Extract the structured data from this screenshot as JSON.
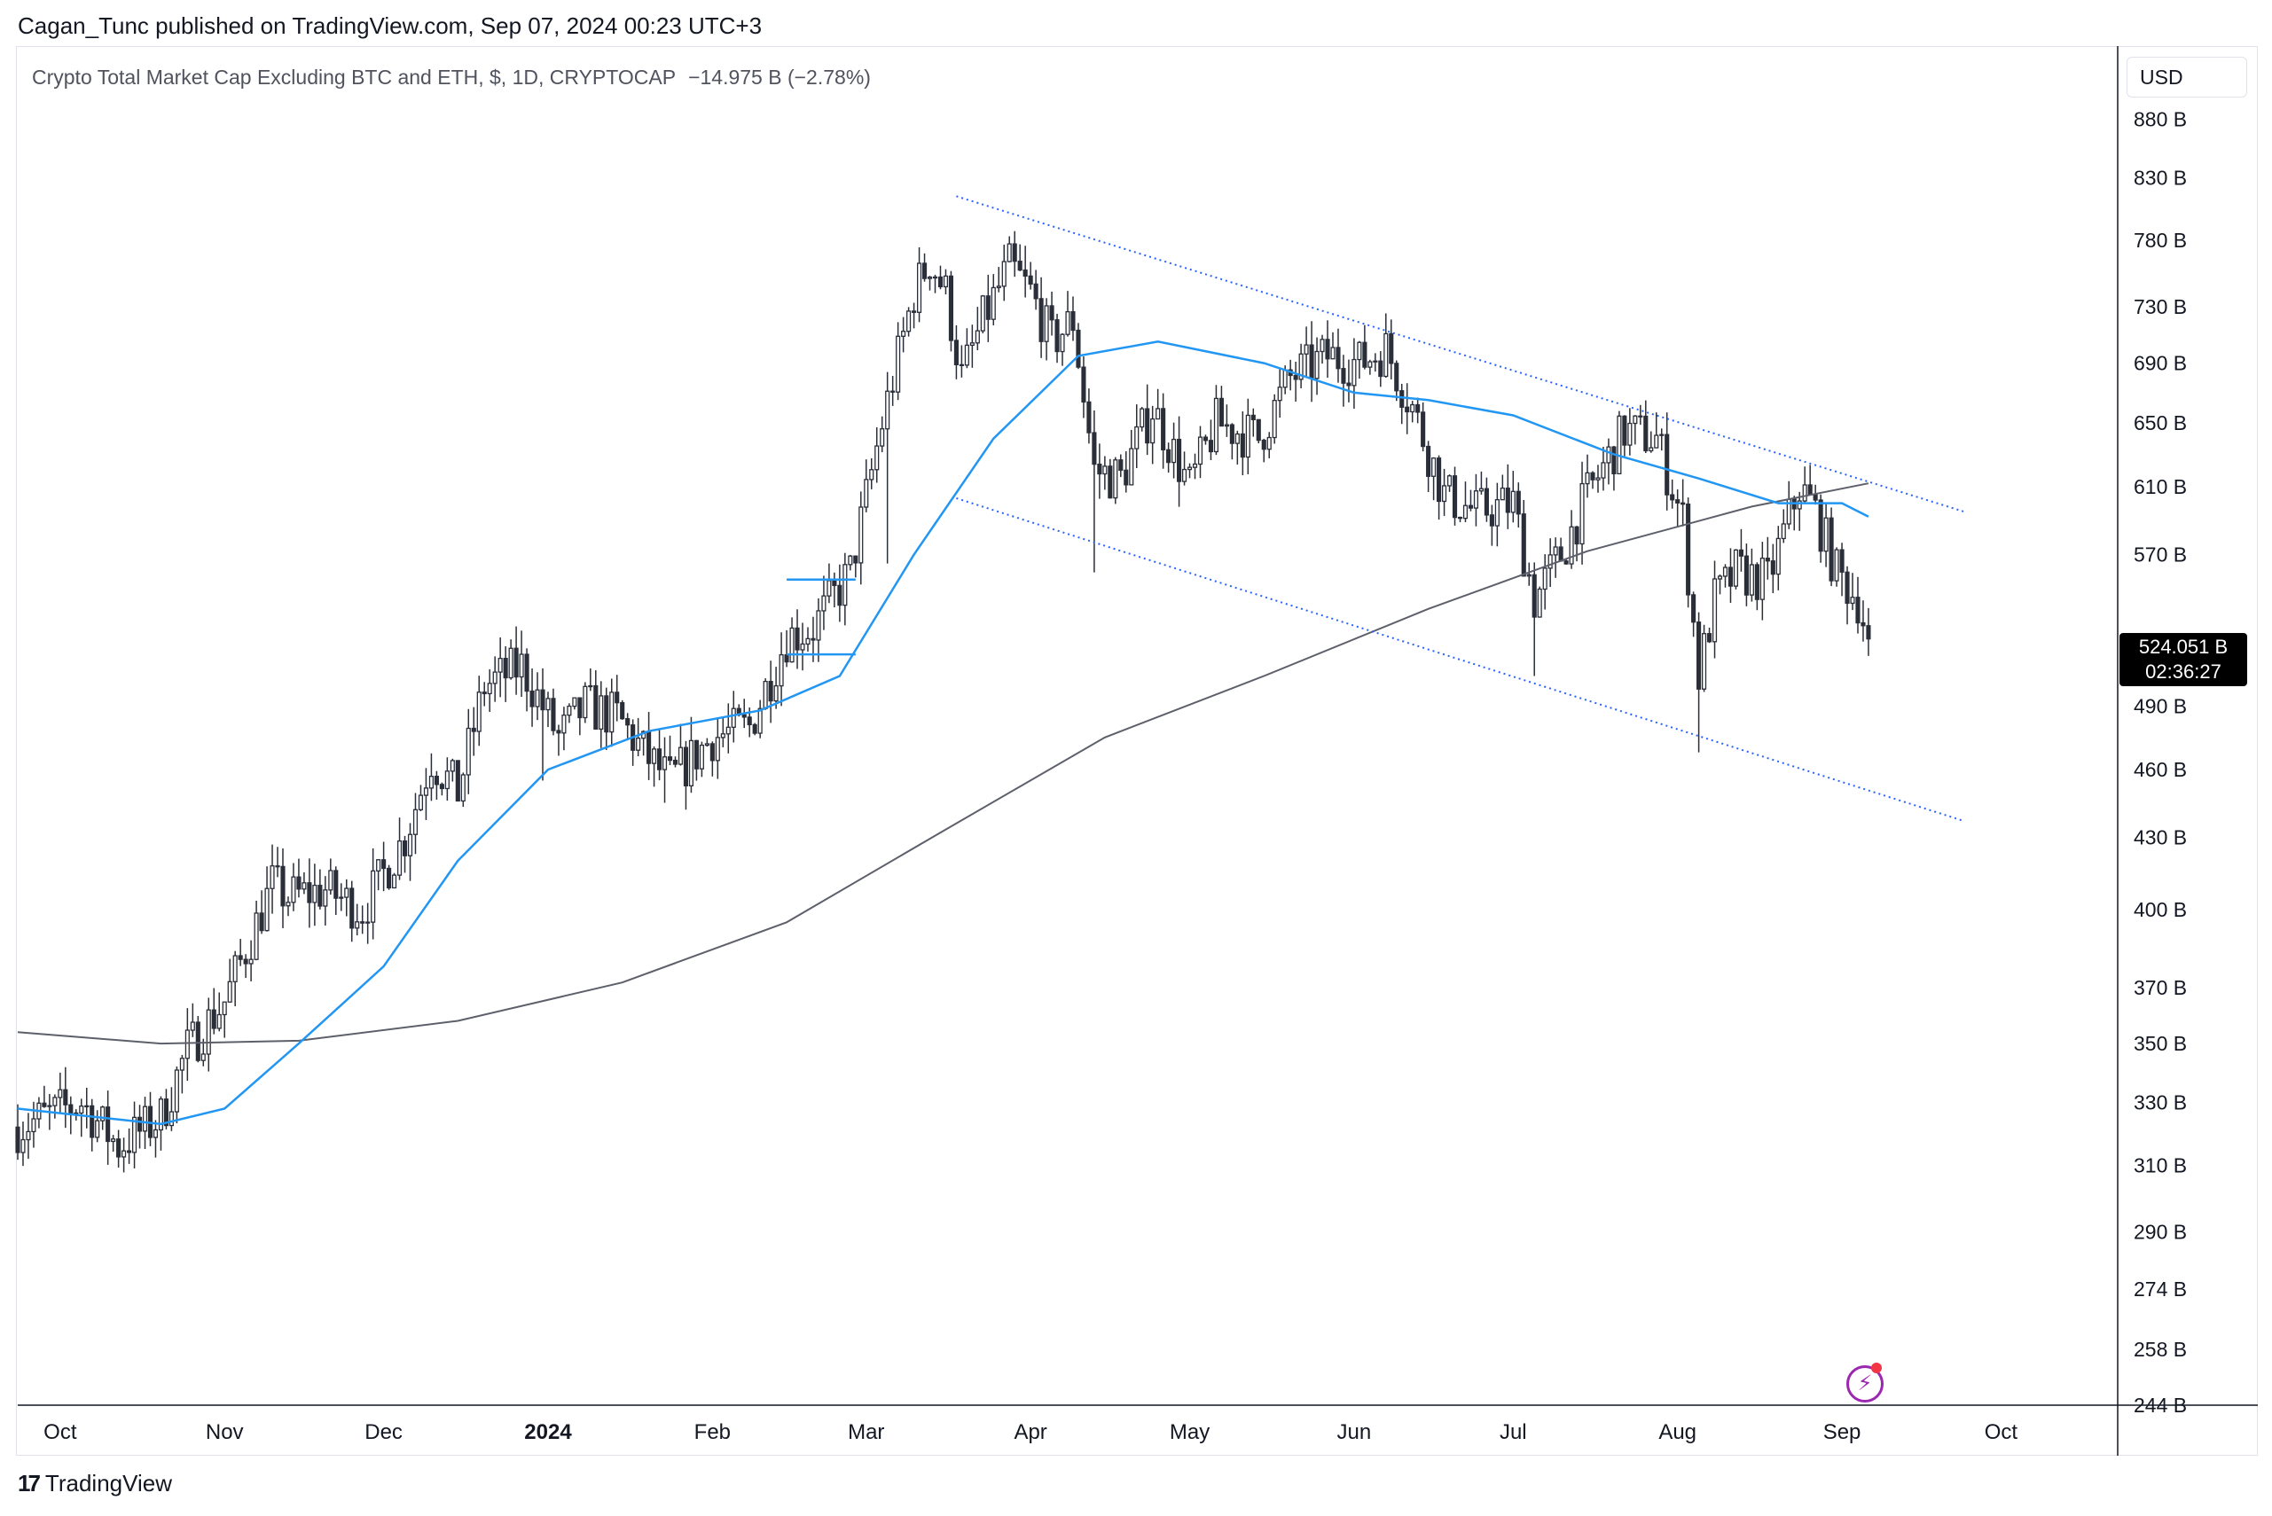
{
  "header": {
    "published_text": "Cagan_Tunc published on TradingView.com, Sep 07, 2024 00:23 UTC+3"
  },
  "legend": {
    "symbol": "Crypto Total Market Cap Excluding BTC and ETH, $, 1D, CRYPTOCAP",
    "change": "−14.975 B (−2.78%)"
  },
  "currency_button": "USD",
  "last_price": {
    "value": "524.051 B",
    "countdown": "02:36:27"
  },
  "footer": {
    "brand": "TradingView"
  },
  "colors": {
    "candle": "#2a2e39",
    "ma_fast": "#2196f3",
    "ma_slow": "#5d606b",
    "channel": "#2962ff",
    "grid_border": "#e0e3eb",
    "axis_text": "#131722"
  },
  "chart_data": {
    "type": "candlestick",
    "scale": "log",
    "title": "Crypto Total Market Cap Excluding BTC and ETH, $, 1D, CRYPTOCAP",
    "ylim": [
      244,
      940
    ],
    "y_ticks": [
      {
        "v": 880,
        "label": "880 B"
      },
      {
        "v": 830,
        "label": "830 B"
      },
      {
        "v": 780,
        "label": "780 B"
      },
      {
        "v": 730,
        "label": "730 B"
      },
      {
        "v": 690,
        "label": "690 B"
      },
      {
        "v": 650,
        "label": "650 B"
      },
      {
        "v": 610,
        "label": "610 B"
      },
      {
        "v": 570,
        "label": "570 B"
      },
      {
        "v": 490,
        "label": "490 B"
      },
      {
        "v": 460,
        "label": "460 B"
      },
      {
        "v": 430,
        "label": "430 B"
      },
      {
        "v": 400,
        "label": "400 B"
      },
      {
        "v": 370,
        "label": "370 B"
      },
      {
        "v": 350,
        "label": "350 B"
      },
      {
        "v": 330,
        "label": "330 B"
      },
      {
        "v": 310,
        "label": "310 B"
      },
      {
        "v": 290,
        "label": "290 B"
      },
      {
        "v": 274,
        "label": "274 B"
      },
      {
        "v": 258,
        "label": "258 B"
      },
      {
        "v": 244,
        "label": "244 B"
      }
    ],
    "x_ticks": [
      {
        "date": "2023-10-01",
        "label": "Oct",
        "bold": false
      },
      {
        "date": "2023-11-01",
        "label": "Nov",
        "bold": false
      },
      {
        "date": "2023-12-01",
        "label": "Dec",
        "bold": false
      },
      {
        "date": "2024-01-01",
        "label": "2024",
        "bold": true
      },
      {
        "date": "2024-02-01",
        "label": "Feb",
        "bold": false
      },
      {
        "date": "2024-03-01",
        "label": "Mar",
        "bold": false
      },
      {
        "date": "2024-04-01",
        "label": "Apr",
        "bold": false
      },
      {
        "date": "2024-05-01",
        "label": "May",
        "bold": false
      },
      {
        "date": "2024-06-01",
        "label": "Jun",
        "bold": false
      },
      {
        "date": "2024-07-01",
        "label": "Jul",
        "bold": false
      },
      {
        "date": "2024-08-01",
        "label": "Aug",
        "bold": false
      },
      {
        "date": "2024-09-01",
        "label": "Sep",
        "bold": false
      },
      {
        "date": "2024-10-01",
        "label": "Oct",
        "bold": false
      }
    ],
    "xlim": [
      "2023-09-23",
      "2024-10-23"
    ],
    "price_path": [
      {
        "date": "2023-09-23",
        "close": 322
      },
      {
        "date": "2023-10-05",
        "close": 330
      },
      {
        "date": "2023-10-12",
        "close": 316
      },
      {
        "date": "2023-10-20",
        "close": 325
      },
      {
        "date": "2023-10-25",
        "close": 348
      },
      {
        "date": "2023-11-01",
        "close": 365
      },
      {
        "date": "2023-11-10",
        "close": 410
      },
      {
        "date": "2023-11-13",
        "close": 405
      },
      {
        "date": "2023-11-20",
        "close": 408
      },
      {
        "date": "2023-11-27",
        "close": 400
      },
      {
        "date": "2023-12-05",
        "close": 430
      },
      {
        "date": "2023-12-10",
        "close": 465
      },
      {
        "date": "2023-12-15",
        "close": 450
      },
      {
        "date": "2023-12-20",
        "close": 500
      },
      {
        "date": "2023-12-27",
        "close": 510
      },
      {
        "date": "2024-01-03",
        "close": 475
      },
      {
        "date": "2024-01-08",
        "close": 490
      },
      {
        "date": "2024-01-14",
        "close": 485
      },
      {
        "date": "2024-01-20",
        "close": 465
      },
      {
        "date": "2024-01-24",
        "close": 455
      },
      {
        "date": "2024-02-01",
        "close": 475
      },
      {
        "date": "2024-02-08",
        "close": 480
      },
      {
        "date": "2024-02-15",
        "close": 525
      },
      {
        "date": "2024-02-20",
        "close": 530
      },
      {
        "date": "2024-02-27",
        "close": 560
      },
      {
        "date": "2024-03-04",
        "close": 650
      },
      {
        "date": "2024-03-10",
        "close": 740
      },
      {
        "date": "2024-03-13",
        "close": 765
      },
      {
        "date": "2024-03-16",
        "close": 740
      },
      {
        "date": "2024-03-19",
        "close": 680
      },
      {
        "date": "2024-03-23",
        "close": 720
      },
      {
        "date": "2024-03-28",
        "close": 760
      },
      {
        "date": "2024-04-01",
        "close": 740
      },
      {
        "date": "2024-04-05",
        "close": 705
      },
      {
        "date": "2024-04-09",
        "close": 720
      },
      {
        "date": "2024-04-13",
        "close": 620
      },
      {
        "date": "2024-04-18",
        "close": 615
      },
      {
        "date": "2024-04-24",
        "close": 660
      },
      {
        "date": "2024-05-01",
        "close": 610
      },
      {
        "date": "2024-05-06",
        "close": 650
      },
      {
        "date": "2024-05-14",
        "close": 640
      },
      {
        "date": "2024-05-20",
        "close": 680
      },
      {
        "date": "2024-05-27",
        "close": 695
      },
      {
        "date": "2024-06-02",
        "close": 690
      },
      {
        "date": "2024-06-07",
        "close": 700
      },
      {
        "date": "2024-06-12",
        "close": 660
      },
      {
        "date": "2024-06-18",
        "close": 605
      },
      {
        "date": "2024-06-24",
        "close": 595
      },
      {
        "date": "2024-07-01",
        "close": 600
      },
      {
        "date": "2024-07-05",
        "close": 545
      },
      {
        "date": "2024-07-10",
        "close": 570
      },
      {
        "date": "2024-07-15",
        "close": 605
      },
      {
        "date": "2024-07-22",
        "close": 645
      },
      {
        "date": "2024-07-28",
        "close": 640
      },
      {
        "date": "2024-08-02",
        "close": 590
      },
      {
        "date": "2024-08-05",
        "close": 505
      },
      {
        "date": "2024-08-08",
        "close": 545
      },
      {
        "date": "2024-08-12",
        "close": 560
      },
      {
        "date": "2024-08-18",
        "close": 555
      },
      {
        "date": "2024-08-24",
        "close": 610
      },
      {
        "date": "2024-08-27",
        "close": 595
      },
      {
        "date": "2024-08-31",
        "close": 560
      },
      {
        "date": "2024-09-04",
        "close": 545
      },
      {
        "date": "2024-09-06",
        "close": 524.051
      }
    ],
    "notable_wicks": [
      {
        "date": "2024-03-05",
        "low": 565
      },
      {
        "date": "2024-04-13",
        "low": 560
      },
      {
        "date": "2024-07-05",
        "low": 505
      },
      {
        "date": "2024-08-05",
        "low": 468
      },
      {
        "date": "2023-12-31",
        "low": 455
      },
      {
        "date": "2024-01-23",
        "low": 445
      }
    ],
    "ma_fast": [
      {
        "date": "2023-09-23",
        "v": 328
      },
      {
        "date": "2023-10-20",
        "v": 323
      },
      {
        "date": "2023-11-01",
        "v": 328
      },
      {
        "date": "2023-11-15",
        "v": 350
      },
      {
        "date": "2023-12-01",
        "v": 378
      },
      {
        "date": "2023-12-15",
        "v": 420
      },
      {
        "date": "2024-01-01",
        "v": 460
      },
      {
        "date": "2024-01-20",
        "v": 478
      },
      {
        "date": "2024-02-10",
        "v": 488
      },
      {
        "date": "2024-02-25",
        "v": 505
      },
      {
        "date": "2024-03-10",
        "v": 570
      },
      {
        "date": "2024-03-25",
        "v": 640
      },
      {
        "date": "2024-04-10",
        "v": 695
      },
      {
        "date": "2024-04-25",
        "v": 705
      },
      {
        "date": "2024-05-15",
        "v": 690
      },
      {
        "date": "2024-06-01",
        "v": 670
      },
      {
        "date": "2024-06-15",
        "v": 665
      },
      {
        "date": "2024-07-01",
        "v": 655
      },
      {
        "date": "2024-07-20",
        "v": 630
      },
      {
        "date": "2024-08-05",
        "v": 615
      },
      {
        "date": "2024-08-20",
        "v": 600
      },
      {
        "date": "2024-09-01",
        "v": 600
      },
      {
        "date": "2024-09-06",
        "v": 592
      }
    ],
    "ma_slow": [
      {
        "date": "2023-09-23",
        "v": 354
      },
      {
        "date": "2023-10-20",
        "v": 350
      },
      {
        "date": "2023-11-15",
        "v": 351
      },
      {
        "date": "2023-12-15",
        "v": 358
      },
      {
        "date": "2024-01-15",
        "v": 372
      },
      {
        "date": "2024-02-15",
        "v": 395
      },
      {
        "date": "2024-03-15",
        "v": 432
      },
      {
        "date": "2024-04-15",
        "v": 475
      },
      {
        "date": "2024-05-15",
        "v": 505
      },
      {
        "date": "2024-06-15",
        "v": 540
      },
      {
        "date": "2024-07-15",
        "v": 572
      },
      {
        "date": "2024-08-15",
        "v": 598
      },
      {
        "date": "2024-09-06",
        "v": 612
      }
    ],
    "channel_upper": [
      {
        "date": "2024-03-18",
        "v": 815
      },
      {
        "date": "2024-09-24",
        "v": 595
      }
    ],
    "channel_lower": [
      {
        "date": "2024-03-18",
        "v": 603
      },
      {
        "date": "2024-09-24",
        "v": 437
      }
    ],
    "range_box": {
      "start": "2024-02-15",
      "end": "2024-02-28",
      "top": 556,
      "bottom": 516
    }
  }
}
